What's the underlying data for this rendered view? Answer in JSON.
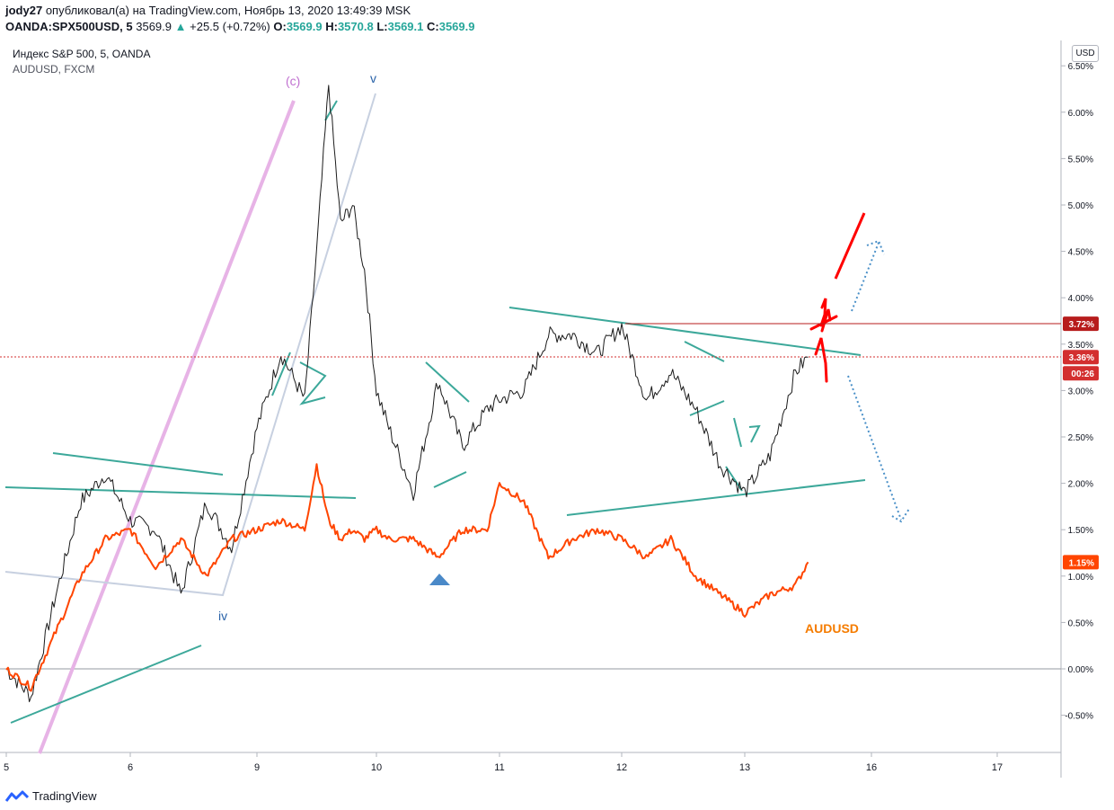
{
  "header": {
    "author": "jody27",
    "published_text": "опубликовал(а) на TradingView.com, Ноябрь 13, 2020 13:49:39 MSK",
    "symbol": "OANDA:SPX500USD, 5",
    "price": "3569.9",
    "change": "+25.5 (+0.72%)",
    "o_label": "O:",
    "o_value": "3569.9",
    "h_label": "H:",
    "h_value": "3570.8",
    "l_label": "L:",
    "l_value": "3569.1",
    "c_label": "C:",
    "c_value": "3569.9"
  },
  "legend": {
    "main": "Индекс S&P 500, 5, OANDA",
    "compare": "AUDUSD, FXCM"
  },
  "currency_button": "USD",
  "footer": {
    "brand": "TradingView"
  },
  "colors": {
    "spx": "#1b1b1b",
    "audusd": "#ff4500",
    "trendline": "#3ca89a",
    "annotation_red": "#ff0000",
    "zero_line": "#9598a1",
    "magenta_line": "#e7b3e6",
    "wave_line": "#c7d0e0",
    "dotted_arrow": "#4a90c8",
    "badge_372": "#b71c1c",
    "badge_336": "#d32f2f",
    "badge_115": "#ff4500"
  },
  "annotations": {
    "wave_c": "(c)",
    "wave_v": "v",
    "wave_iv": "iv",
    "audusd_label": "AUDUSD"
  },
  "chart_data": {
    "type": "line",
    "title": "Индекс S&P 500, 5, OANDA",
    "x_ticks": [
      "5",
      "6",
      "9",
      "10",
      "11",
      "12",
      "13",
      "16",
      "17"
    ],
    "y_ticks": [
      "6.50%",
      "6.00%",
      "5.50%",
      "5.00%",
      "4.50%",
      "4.00%",
      "3.50%",
      "3.00%",
      "2.50%",
      "2.00%",
      "1.50%",
      "1.00%",
      "0.50%",
      "0.00%",
      "-0.50%"
    ],
    "ylim": [
      -0.9,
      6.7
    ],
    "ylabel": "%",
    "badges": [
      {
        "label": "3.72%",
        "value": 3.72
      },
      {
        "label": "3.36%",
        "value": 3.36
      },
      {
        "label": "00:26",
        "value": 3.36
      },
      {
        "label": "1.15%",
        "value": 1.15
      }
    ],
    "series": [
      {
        "name": "OANDA:SPX500USD",
        "x": [
          5.0,
          5.2,
          5.4,
          5.6,
          5.8,
          6.0,
          6.2,
          6.4,
          6.6,
          6.8,
          9.0,
          9.2,
          9.4,
          9.5,
          9.6,
          9.7,
          9.8,
          9.9,
          10.0,
          10.1,
          10.3,
          10.5,
          10.7,
          10.9,
          11.0,
          11.2,
          11.4,
          11.6,
          11.8,
          12.0,
          12.2,
          12.4,
          12.6,
          12.8,
          13.0,
          13.2,
          13.4,
          13.5
        ],
        "values": [
          0.0,
          -0.3,
          0.8,
          1.8,
          2.1,
          1.6,
          1.5,
          0.8,
          1.8,
          1.3,
          2.6,
          3.4,
          2.9,
          4.5,
          6.3,
          4.8,
          5.0,
          4.3,
          3.0,
          2.6,
          1.9,
          3.1,
          2.4,
          2.8,
          2.9,
          3.0,
          3.6,
          3.6,
          3.4,
          3.7,
          2.9,
          3.2,
          2.8,
          2.2,
          1.9,
          2.3,
          3.2,
          3.36
        ]
      },
      {
        "name": "AUDUSD, FXCM",
        "x": [
          5.0,
          5.2,
          5.4,
          5.6,
          5.8,
          6.0,
          6.2,
          6.4,
          6.6,
          6.8,
          9.0,
          9.2,
          9.4,
          9.5,
          9.6,
          9.7,
          9.8,
          9.9,
          10.0,
          10.1,
          10.3,
          10.5,
          10.7,
          10.9,
          11.0,
          11.2,
          11.4,
          11.6,
          11.8,
          12.0,
          12.2,
          12.4,
          12.6,
          12.8,
          13.0,
          13.2,
          13.4,
          13.5
        ],
        "values": [
          0.0,
          -0.2,
          0.4,
          1.0,
          1.4,
          1.5,
          1.1,
          1.4,
          1.0,
          1.4,
          1.5,
          1.6,
          1.5,
          2.2,
          1.6,
          1.4,
          1.5,
          1.4,
          1.5,
          1.4,
          1.4,
          1.2,
          1.5,
          1.5,
          2.0,
          1.8,
          1.2,
          1.4,
          1.5,
          1.4,
          1.2,
          1.4,
          1.0,
          0.8,
          0.6,
          0.8,
          0.9,
          1.15
        ]
      }
    ]
  }
}
